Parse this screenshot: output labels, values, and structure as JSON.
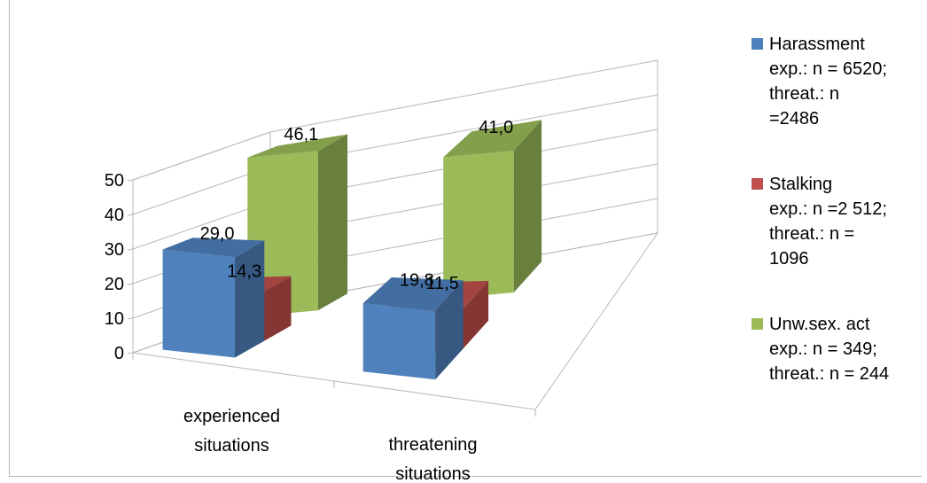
{
  "chart_data": {
    "type": "bar",
    "subtype": "3d-clustered-column",
    "categories": [
      "experienced situations",
      "threatening situations"
    ],
    "series": [
      {
        "name": "Harassment",
        "values": [
          29.0,
          19.8
        ],
        "labels": [
          "29,0",
          "19,8"
        ],
        "color": "#4f81bd",
        "legend_lines": [
          "Harassment",
          "exp.: n = 6520;",
          "threat.: n",
          "=2486"
        ]
      },
      {
        "name": "Stalking",
        "values": [
          14.3,
          11.5
        ],
        "labels": [
          "14,3",
          "11,5"
        ],
        "color": "#c0504d",
        "legend_lines": [
          "Stalking",
          "exp.: n =2 512;",
          "threat.:  n =",
          "1096"
        ]
      },
      {
        "name": "Unw.sex. act",
        "values": [
          46.1,
          41.0
        ],
        "labels": [
          "46,1",
          "41,0"
        ],
        "color": "#9bbb59",
        "legend_lines": [
          "Unw.sex. act",
          "exp.: n = 349;",
          "threat.: n = 244"
        ]
      }
    ],
    "ylim": [
      0,
      50
    ],
    "yticks": [
      0,
      10,
      20,
      30,
      40,
      50
    ],
    "ytick_labels": [
      "0",
      "10",
      "20",
      "30",
      "40",
      "50"
    ],
    "category_labels": [
      [
        "experienced",
        "situations"
      ],
      [
        "threatening",
        "situations"
      ]
    ],
    "grid": true,
    "legend_position": "right",
    "title": "",
    "xlabel": "",
    "ylabel": ""
  }
}
